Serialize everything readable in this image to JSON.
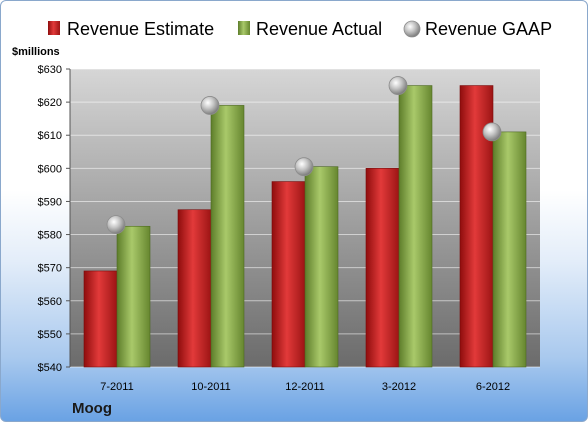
{
  "chart_data": {
    "type": "bar",
    "categories": [
      "7-2011",
      "10-2011",
      "12-2011",
      "3-2012",
      "6-2012"
    ],
    "series": [
      {
        "name": "Revenue Estimate",
        "kind": "bar",
        "color": "#cc1f1f",
        "values": [
          569,
          587.5,
          596,
          600,
          625
        ]
      },
      {
        "name": "Revenue Actual",
        "kind": "bar",
        "color": "#8db04a",
        "values": [
          582.5,
          619,
          600.5,
          625,
          611
        ]
      },
      {
        "name": "Revenue GAAP",
        "kind": "marker",
        "color": "#b9b9b9",
        "values": [
          583,
          619,
          600.5,
          625,
          611
        ]
      }
    ],
    "ylabel": "$millions",
    "ylim": [
      540,
      630
    ],
    "yticks": [
      540,
      550,
      560,
      570,
      580,
      590,
      600,
      610,
      620,
      630
    ],
    "ytick_labels": [
      "$540",
      "$550",
      "$560",
      "$570",
      "$580",
      "$590",
      "$600",
      "$610",
      "$620",
      "$630"
    ],
    "grid": true,
    "legend": "top"
  },
  "company": "Moog"
}
